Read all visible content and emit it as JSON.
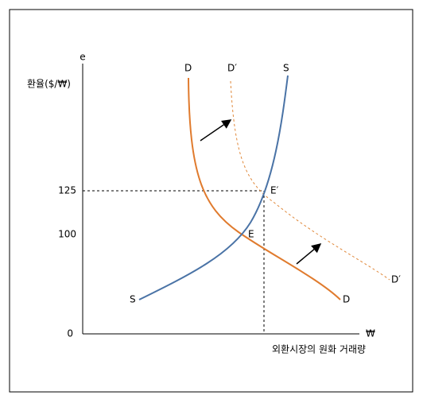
{
  "axes": {
    "y_label_symbol": "e",
    "y_label": "환율($/₩)",
    "x_label_symbol": "₩",
    "x_label": "외환시장의 원화 거래량",
    "y_ticks": [
      "125",
      "100",
      "0"
    ]
  },
  "curves": {
    "d_top": "D",
    "d_bottom": "D",
    "d_prime_top": "D′",
    "d_prime_bottom": "D′",
    "s_top": "S",
    "s_bottom": "S"
  },
  "points": {
    "e": "E",
    "e_prime": "E′"
  }
}
